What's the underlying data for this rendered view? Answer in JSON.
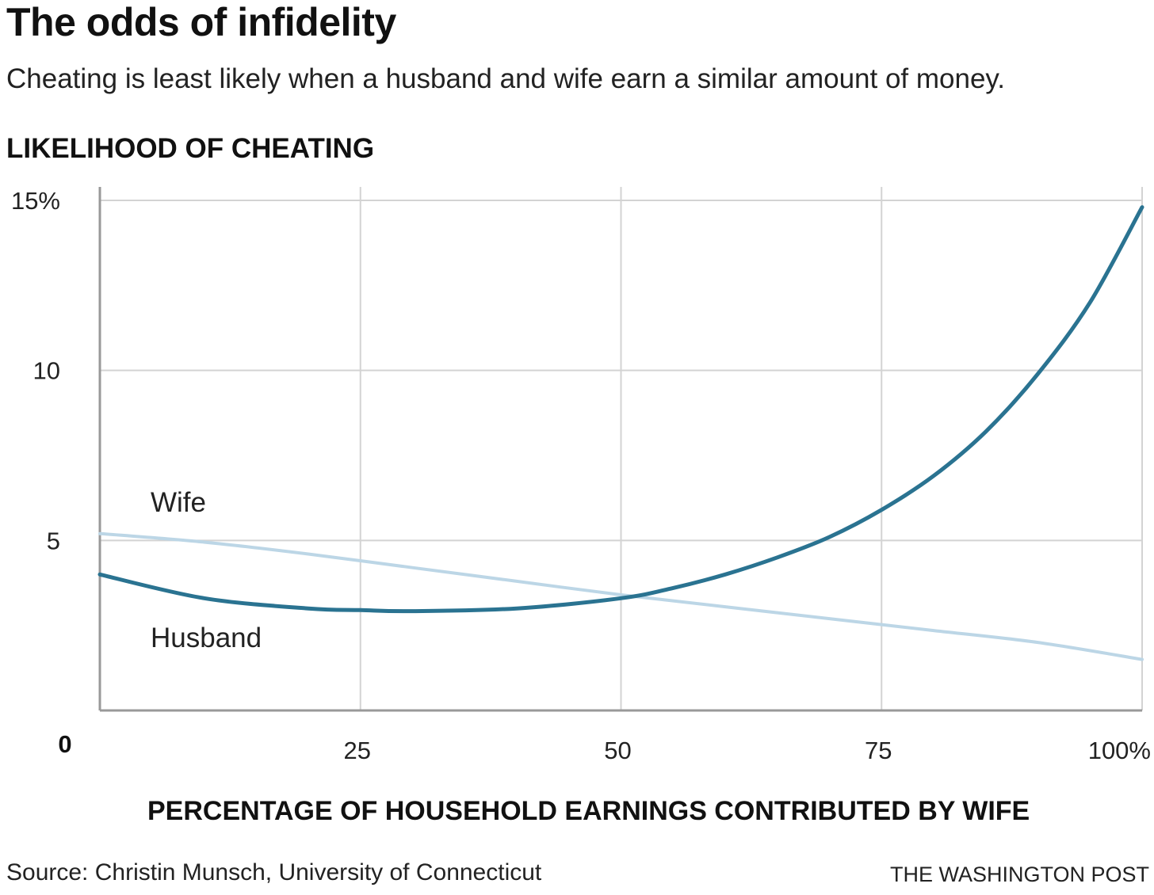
{
  "header": {
    "title": "The odds of infidelity",
    "subtitle": "Cheating is least likely when a husband and wife earn a similar amount of money."
  },
  "footer": {
    "source": "Source: Christin Munsch, University of Connecticut",
    "credit": "THE WASHINGTON POST"
  },
  "colors": {
    "husband": "#2a7391",
    "wife": "#bcd6e6",
    "grid": "#d3d3d3",
    "axis": "#999999"
  },
  "chart_data": {
    "type": "line",
    "title": "The odds of infidelity",
    "subtitle": "Cheating is least likely when a husband and wife earn a similar amount of money.",
    "ylabel": "LIKELIHOOD OF CHEATING",
    "xlabel": "PERCENTAGE OF HOUSEHOLD EARNINGS CONTRIBUTED BY WIFE",
    "xlim": [
      0,
      100
    ],
    "ylim": [
      0,
      15
    ],
    "grid": true,
    "xticks": [
      {
        "value": 0,
        "label": "0"
      },
      {
        "value": 25,
        "label": "25"
      },
      {
        "value": 50,
        "label": "50"
      },
      {
        "value": 75,
        "label": "75"
      },
      {
        "value": 100,
        "label": "100%"
      }
    ],
    "yticks": [
      {
        "value": 5,
        "label": "5"
      },
      {
        "value": 10,
        "label": "10"
      },
      {
        "value": 15,
        "label": "15%"
      }
    ],
    "series": [
      {
        "name": "Wife",
        "x": [
          0,
          10,
          20,
          30,
          40,
          50,
          60,
          70,
          80,
          90,
          100
        ],
        "y": [
          5.2,
          4.95,
          4.6,
          4.2,
          3.8,
          3.4,
          3.05,
          2.7,
          2.35,
          2.0,
          1.5
        ]
      },
      {
        "name": "Husband",
        "x": [
          0,
          10,
          20,
          25,
          30,
          40,
          50,
          55,
          60,
          65,
          70,
          75,
          80,
          85,
          90,
          95,
          100
        ],
        "y": [
          4.0,
          3.3,
          3.0,
          2.95,
          2.92,
          3.0,
          3.3,
          3.6,
          4.0,
          4.5,
          5.1,
          5.9,
          6.9,
          8.2,
          9.9,
          12.0,
          14.8
        ]
      }
    ]
  }
}
